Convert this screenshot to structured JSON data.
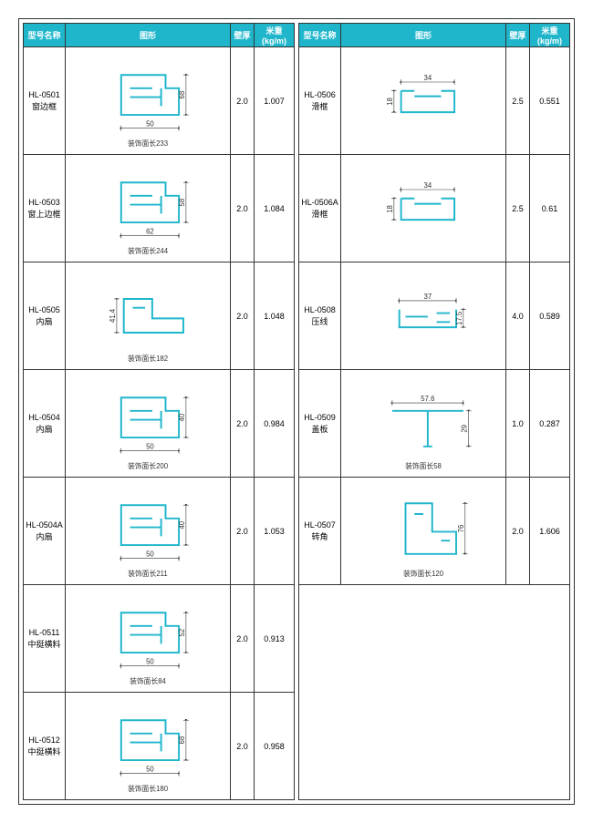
{
  "headers": {
    "model": "型号名称",
    "graph": "图形",
    "thickness": "壁厚",
    "weight": "米重(kg/m)"
  },
  "colors": {
    "header_bg": "#1fb6cc",
    "shape_stroke": "#1fb6cc",
    "border": "#333333"
  },
  "left": [
    {
      "code": "HL-0501",
      "name": "窗边框",
      "thick": "2.0",
      "weight": "1.007",
      "caption": "装饰面长233",
      "w": "50",
      "h": "68",
      "svg": "B"
    },
    {
      "code": "HL-0503",
      "name": "窗上边框",
      "thick": "2.0",
      "weight": "1.084",
      "caption": "装饰面长244",
      "w": "62",
      "h": "58",
      "svg": "B"
    },
    {
      "code": "HL-0505",
      "name": "内扇",
      "thick": "2.0",
      "weight": "1.048",
      "caption": "装饰面长182",
      "w": "",
      "h": "41.4",
      "svg": "E"
    },
    {
      "code": "HL-0504",
      "name": "内扇",
      "thick": "2.0",
      "weight": "0.984",
      "caption": "装饰面长200",
      "w": "50",
      "h": "40",
      "svg": "B"
    },
    {
      "code": "HL-0504A",
      "name": "内扇",
      "thick": "2.0",
      "weight": "1.053",
      "caption": "装饰面长211",
      "w": "50",
      "h": "40",
      "svg": "B"
    },
    {
      "code": "HL-0511",
      "name": "中挺横料",
      "thick": "2.0",
      "weight": "0.913",
      "caption": "装饰面长84",
      "w": "50",
      "h": "52",
      "svg": "B"
    },
    {
      "code": "HL-0512",
      "name": "中挺横料",
      "thick": "2.0",
      "weight": "0.958",
      "caption": "装饰面长180",
      "w": "50",
      "h": "68",
      "svg": "B"
    }
  ],
  "right": [
    {
      "code": "HL-0506",
      "name": "滑框",
      "thick": "2.5",
      "weight": "0.551",
      "caption": "",
      "w": "34",
      "h": "18",
      "svg": "C"
    },
    {
      "code": "HL-0506A",
      "name": "滑框",
      "thick": "2.5",
      "weight": "0.61",
      "caption": "",
      "w": "34",
      "h": "18",
      "svg": "C"
    },
    {
      "code": "HL-0508",
      "name": "压线",
      "thick": "4.0",
      "weight": "0.589",
      "caption": "",
      "w": "37",
      "h": "17.5",
      "svg": "D"
    },
    {
      "code": "HL-0509",
      "name": "盖板",
      "thick": "1.0",
      "weight": "0.287",
      "caption": "装饰面长58",
      "w": "57.6",
      "h": "29",
      "svg": "T"
    },
    {
      "code": "HL-0507",
      "name": "转角",
      "thick": "2.0",
      "weight": "1.606",
      "caption": "装饰面长120",
      "w": "",
      "h": "76",
      "svg": "L"
    }
  ]
}
